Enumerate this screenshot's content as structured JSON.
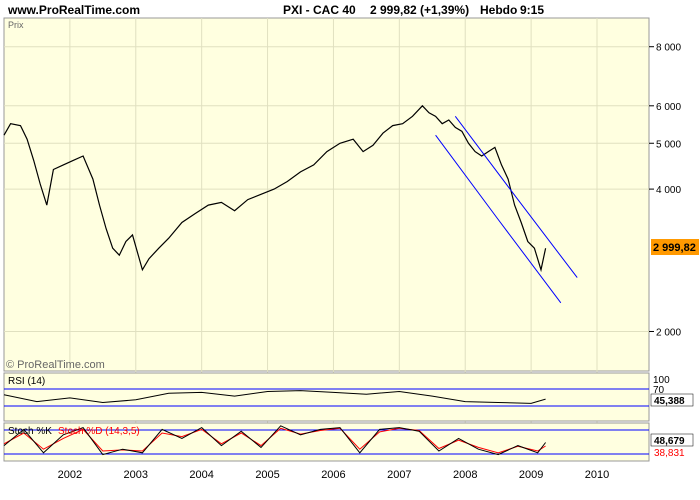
{
  "header": {
    "site": "www.ProRealTime.com",
    "instrument": "PXI - CAC 40",
    "quote": "2 999,82 (+1,39%)",
    "period": "Hebdo",
    "time": "9:15"
  },
  "panes": {
    "price_label": "Prix",
    "watermark": "© ProRealTime.com",
    "rsi_label": "RSI (14)",
    "stoch_label_k": "Stoch %K",
    "stoch_label_d": "Stoch %D (14,3,5)"
  },
  "colors": {
    "background": "#ffffe0",
    "price_line": "#000000",
    "channel": "#0000ff",
    "rsi_band": "#0000ff",
    "stoch_k": "#000000",
    "stoch_d": "#ff0000",
    "last_value_badge": "#ff9900"
  },
  "chart_data": [
    {
      "type": "line",
      "pane": "price",
      "scale": "log",
      "ylim": [
        1650,
        9200
      ],
      "y_ticks": [
        2000,
        4000,
        5000,
        6000,
        8000
      ],
      "y_tick_labels": [
        "2 000",
        "4 000",
        "5 000",
        "6 000",
        "8 000"
      ],
      "last_value": 2999.82,
      "last_value_label": "2 999,82",
      "x_tick_labels": [
        "2002",
        "2003",
        "2004",
        "2005",
        "2006",
        "2007",
        "2008",
        "2009",
        "2010"
      ],
      "series": [
        {
          "x": [
            2001.0,
            2001.1,
            2001.25,
            2001.35,
            2001.45,
            2001.55,
            2001.65,
            2001.75,
            2001.9,
            2002.05,
            2002.2,
            2002.35,
            2002.45,
            2002.55,
            2002.65,
            2002.75,
            2002.85,
            2002.95,
            2003.1,
            2003.2,
            2003.35,
            2003.5,
            2003.7,
            2003.9,
            2004.1,
            2004.3,
            2004.5,
            2004.7,
            2004.9,
            2005.1,
            2005.3,
            2005.5,
            2005.7,
            2005.9,
            2006.1,
            2006.3,
            2006.45,
            2006.6,
            2006.75,
            2006.9,
            2007.05,
            2007.2,
            2007.35,
            2007.45,
            2007.55,
            2007.65,
            2007.75,
            2007.85,
            2007.95,
            2008.05,
            2008.15,
            2008.25,
            2008.35,
            2008.45,
            2008.55,
            2008.65,
            2008.75,
            2008.85,
            2008.95,
            2009.05,
            2009.15,
            2009.22
          ],
          "close": [
            5200,
            5500,
            5450,
            5100,
            4600,
            4100,
            3700,
            4400,
            4500,
            4600,
            4700,
            4200,
            3700,
            3300,
            3000,
            2900,
            3100,
            3200,
            2700,
            2850,
            3000,
            3150,
            3400,
            3550,
            3700,
            3750,
            3600,
            3800,
            3900,
            4000,
            4150,
            4350,
            4500,
            4800,
            5000,
            5100,
            4800,
            4950,
            5250,
            5450,
            5500,
            5700,
            6000,
            5800,
            5700,
            5500,
            5600,
            5400,
            5300,
            5000,
            4800,
            4700,
            4800,
            4900,
            4500,
            4200,
            3700,
            3400,
            3100,
            3000,
            2700,
            2999.82
          ]
        }
      ],
      "channel": [
        {
          "x": [
            2007.55,
            2008.5,
            2009.45
          ],
          "y": [
            5200,
            3450,
            2300
          ]
        },
        {
          "x": [
            2007.85,
            2008.8,
            2009.7
          ],
          "y": [
            5700,
            3800,
            2600
          ]
        }
      ]
    },
    {
      "type": "line",
      "pane": "rsi",
      "ylim": [
        0,
        100
      ],
      "y_tick_labels": [
        "100",
        "70"
      ],
      "last_value": 45.388,
      "last_value_label": "45,388",
      "series": [
        {
          "name": "RSI (14)",
          "x": [
            2001.0,
            2001.5,
            2002.0,
            2002.5,
            2003.0,
            2003.5,
            2004.0,
            2004.5,
            2005.0,
            2005.5,
            2006.0,
            2006.5,
            2007.0,
            2007.5,
            2008.0,
            2008.5,
            2009.0,
            2009.22
          ],
          "values": [
            55,
            40,
            48,
            38,
            44,
            58,
            60,
            52,
            62,
            64,
            60,
            56,
            62,
            52,
            40,
            38,
            36,
            45.388
          ]
        }
      ]
    },
    {
      "type": "line",
      "pane": "stochastic",
      "ylim": [
        0,
        100
      ],
      "last_value": 48.679,
      "last_value_label": "48,679",
      "secondary_label": "38,831",
      "series": [
        {
          "name": "Stoch %K",
          "x": [
            2001.0,
            2001.3,
            2001.6,
            2001.9,
            2002.2,
            2002.5,
            2002.8,
            2003.1,
            2003.4,
            2003.7,
            2004.0,
            2004.3,
            2004.6,
            2004.9,
            2005.2,
            2005.5,
            2005.8,
            2006.1,
            2006.4,
            2006.7,
            2007.0,
            2007.3,
            2007.6,
            2007.9,
            2008.2,
            2008.5,
            2008.8,
            2009.1,
            2009.22
          ],
          "values": [
            40,
            85,
            20,
            70,
            90,
            15,
            30,
            20,
            85,
            60,
            90,
            40,
            80,
            35,
            95,
            70,
            85,
            90,
            20,
            85,
            90,
            80,
            25,
            60,
            30,
            15,
            40,
            20,
            48.679
          ]
        },
        {
          "name": "Stoch %D (14,3,5)",
          "x": [
            2001.0,
            2001.3,
            2001.6,
            2001.9,
            2002.2,
            2002.5,
            2002.8,
            2003.1,
            2003.4,
            2003.7,
            2004.0,
            2004.3,
            2004.6,
            2004.9,
            2005.2,
            2005.5,
            2005.8,
            2006.1,
            2006.4,
            2006.7,
            2007.0,
            2007.3,
            2007.6,
            2007.9,
            2008.2,
            2008.5,
            2008.8,
            2009.1,
            2009.22
          ],
          "values": [
            45,
            75,
            30,
            60,
            85,
            25,
            28,
            25,
            75,
            65,
            85,
            45,
            75,
            40,
            88,
            72,
            82,
            88,
            30,
            78,
            88,
            82,
            32,
            55,
            35,
            20,
            38,
            25,
            38.831
          ]
        }
      ]
    }
  ]
}
